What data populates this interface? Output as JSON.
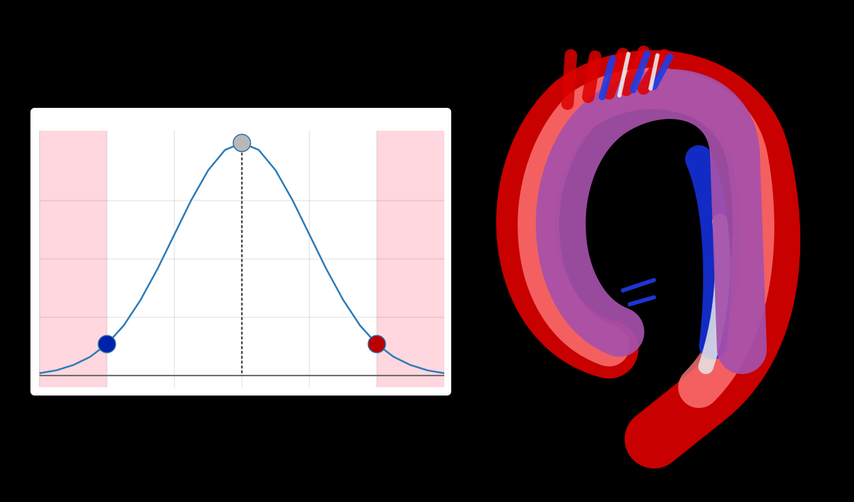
{
  "chart_data": {
    "type": "line",
    "x": [
      -3,
      -2.75,
      -2.5,
      -2.25,
      -2,
      -1.75,
      -1.5,
      -1.25,
      -1,
      -0.75,
      -0.5,
      -0.25,
      0,
      0.25,
      0.5,
      0.75,
      1,
      1.25,
      1.5,
      1.75,
      2,
      2.25,
      2.5,
      2.75,
      3
    ],
    "series": [
      {
        "color": "#2a7ab8",
        "values": [
          0.004,
          0.009,
          0.018,
          0.032,
          0.054,
          0.086,
          0.13,
          0.183,
          0.242,
          0.301,
          0.352,
          0.387,
          0.399,
          0.387,
          0.352,
          0.301,
          0.242,
          0.183,
          0.13,
          0.086,
          0.054,
          0.032,
          0.018,
          0.009,
          0.004
        ]
      }
    ],
    "markers": {
      "x": [
        -2,
        0,
        2
      ],
      "values": [
        0.054,
        0.399,
        0.054
      ],
      "colors": [
        "#0022aa",
        "#b8b8b8",
        "#bb0000"
      ]
    },
    "shaded": {
      "ranges": [
        [
          -3,
          -2
        ],
        [
          2,
          3
        ]
      ],
      "color": "#ffd7df"
    },
    "vline": 0,
    "xlim": [
      -3,
      3
    ],
    "ylim": [
      -0.02,
      0.42
    ],
    "xticks": [
      -2,
      -1,
      0,
      1,
      2
    ],
    "yticks": [
      0,
      0.1,
      0.2,
      0.3
    ],
    "grid": true
  }
}
